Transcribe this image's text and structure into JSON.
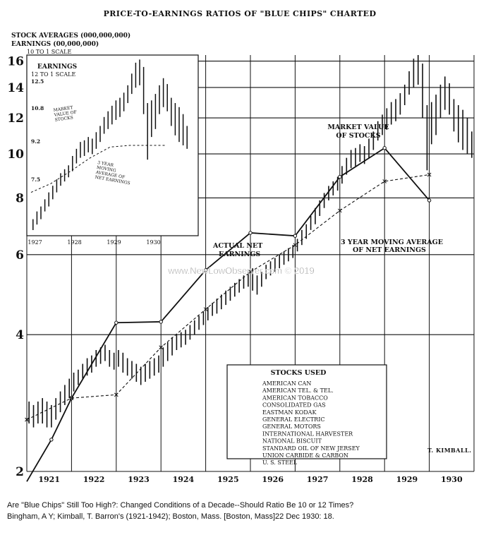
{
  "chart_data": {
    "type": "line",
    "title": "PRICE-TO-EARNINGS RATIOS OF \"BLUE CHIPS\" CHARTED",
    "ylabel_lines": [
      "STOCK AVERAGES (000,000,000)",
      "EARNINGS (00,000,000)",
      "10 TO 1 SCALE"
    ],
    "y_scale": "log",
    "y_ticks": [
      2,
      4,
      6,
      8,
      10,
      12,
      14,
      16
    ],
    "ylim": [
      2,
      16.5
    ],
    "x_tick_labels": [
      "1921",
      "1922",
      "1923",
      "1924",
      "1925",
      "1926",
      "1927",
      "1928",
      "1929",
      "1930"
    ],
    "xlim": [
      1921,
      1931
    ],
    "annotations": {
      "market_value": [
        "MARKET VALUE",
        "OF STOCKS"
      ],
      "actual_net": [
        "ACTUAL NET",
        "EARNINGS"
      ],
      "moving_avg": [
        "3 YEAR MOVING AVERAGE",
        "OF NET EARNINGS"
      ],
      "signature": "T. KIMBALL."
    },
    "series": [
      {
        "name": "MARKET VALUE OF STOCKS",
        "style": "hi-lo bars",
        "points": [
          [
            1921.0,
            2.85,
            2.55
          ],
          [
            1921.1,
            2.8,
            2.5
          ],
          [
            1921.2,
            2.85,
            2.55
          ],
          [
            1921.3,
            2.9,
            2.55
          ],
          [
            1921.4,
            2.85,
            2.5
          ],
          [
            1921.5,
            2.8,
            2.5
          ],
          [
            1921.6,
            2.9,
            2.6
          ],
          [
            1921.7,
            3.0,
            2.7
          ],
          [
            1921.8,
            3.1,
            2.8
          ],
          [
            1921.9,
            3.2,
            2.9
          ],
          [
            1922.0,
            3.3,
            3.0
          ],
          [
            1922.1,
            3.35,
            3.1
          ],
          [
            1922.2,
            3.45,
            3.2
          ],
          [
            1922.3,
            3.55,
            3.25
          ],
          [
            1922.4,
            3.6,
            3.3
          ],
          [
            1922.5,
            3.7,
            3.4
          ],
          [
            1922.6,
            3.75,
            3.45
          ],
          [
            1922.7,
            3.8,
            3.5
          ],
          [
            1922.8,
            3.7,
            3.4
          ],
          [
            1922.9,
            3.65,
            3.35
          ],
          [
            1923.0,
            3.7,
            3.4
          ],
          [
            1923.1,
            3.65,
            3.3
          ],
          [
            1923.2,
            3.55,
            3.25
          ],
          [
            1923.3,
            3.5,
            3.2
          ],
          [
            1923.4,
            3.45,
            3.15
          ],
          [
            1923.5,
            3.4,
            3.1
          ],
          [
            1923.6,
            3.45,
            3.15
          ],
          [
            1923.7,
            3.5,
            3.2
          ],
          [
            1923.8,
            3.55,
            3.25
          ],
          [
            1923.9,
            3.6,
            3.3
          ],
          [
            1924.0,
            3.75,
            3.4
          ],
          [
            1924.1,
            3.85,
            3.5
          ],
          [
            1924.2,
            3.95,
            3.6
          ],
          [
            1924.3,
            4.0,
            3.7
          ],
          [
            1924.4,
            4.05,
            3.75
          ],
          [
            1924.5,
            4.1,
            3.8
          ],
          [
            1924.6,
            4.2,
            3.9
          ],
          [
            1924.7,
            4.3,
            4.0
          ],
          [
            1924.8,
            4.4,
            4.1
          ],
          [
            1924.9,
            4.5,
            4.2
          ],
          [
            1925.0,
            4.6,
            4.3
          ],
          [
            1925.1,
            4.7,
            4.4
          ],
          [
            1925.2,
            4.8,
            4.45
          ],
          [
            1925.3,
            4.9,
            4.55
          ],
          [
            1925.4,
            5.0,
            4.65
          ],
          [
            1925.5,
            5.1,
            4.75
          ],
          [
            1925.6,
            5.2,
            4.85
          ],
          [
            1925.7,
            5.3,
            4.95
          ],
          [
            1925.8,
            5.4,
            5.05
          ],
          [
            1925.9,
            5.5,
            5.1
          ],
          [
            1926.0,
            5.6,
            5.0
          ],
          [
            1926.1,
            5.4,
            4.9
          ],
          [
            1926.2,
            5.5,
            5.1
          ],
          [
            1926.3,
            5.7,
            5.3
          ],
          [
            1926.4,
            5.8,
            5.4
          ],
          [
            1926.5,
            5.9,
            5.5
          ],
          [
            1926.6,
            6.0,
            5.6
          ],
          [
            1926.7,
            6.1,
            5.7
          ],
          [
            1926.8,
            6.2,
            5.8
          ],
          [
            1926.9,
            6.3,
            5.9
          ],
          [
            1927.0,
            6.5,
            6.1
          ],
          [
            1927.1,
            6.8,
            6.3
          ],
          [
            1927.2,
            7.0,
            6.5
          ],
          [
            1927.3,
            7.3,
            6.8
          ],
          [
            1927.4,
            7.6,
            7.0
          ],
          [
            1927.5,
            7.9,
            7.3
          ],
          [
            1927.6,
            8.2,
            7.6
          ],
          [
            1927.7,
            8.5,
            7.9
          ],
          [
            1927.8,
            8.7,
            8.1
          ],
          [
            1927.9,
            8.9,
            8.3
          ],
          [
            1928.0,
            9.4,
            8.6
          ],
          [
            1928.1,
            9.8,
            9.0
          ],
          [
            1928.2,
            10.2,
            9.3
          ],
          [
            1928.3,
            10.3,
            9.4
          ],
          [
            1928.4,
            10.5,
            9.6
          ],
          [
            1928.5,
            10.4,
            9.5
          ],
          [
            1928.6,
            10.8,
            9.8
          ],
          [
            1928.7,
            11.2,
            10.2
          ],
          [
            1928.8,
            11.8,
            10.7
          ],
          [
            1928.9,
            12.2,
            11.0
          ],
          [
            1929.0,
            12.6,
            11.3
          ],
          [
            1929.1,
            13.0,
            11.6
          ],
          [
            1929.2,
            13.2,
            11.8
          ],
          [
            1929.3,
            13.6,
            12.2
          ],
          [
            1929.4,
            14.2,
            12.8
          ],
          [
            1929.5,
            15.2,
            13.5
          ],
          [
            1929.6,
            16.2,
            14.0
          ],
          [
            1929.7,
            16.5,
            14.2
          ],
          [
            1929.8,
            15.8,
            12.0
          ],
          [
            1929.9,
            12.8,
            9.2
          ],
          [
            1930.0,
            13.0,
            10.5
          ],
          [
            1930.1,
            13.5,
            11.0
          ],
          [
            1930.2,
            14.2,
            12.0
          ],
          [
            1930.3,
            14.8,
            12.5
          ],
          [
            1930.4,
            14.3,
            12.2
          ],
          [
            1930.5,
            13.2,
            11.2
          ],
          [
            1930.6,
            12.8,
            10.6
          ],
          [
            1930.7,
            12.5,
            10.2
          ],
          [
            1930.8,
            12.0,
            10.0
          ],
          [
            1930.9,
            11.2,
            9.8
          ]
        ]
      },
      {
        "name": "ACTUAL NET EARNINGS",
        "style": "solid",
        "points": [
          [
            1921.0,
            1.9
          ],
          [
            1921.55,
            2.35
          ],
          [
            1922.0,
            2.9
          ],
          [
            1923.0,
            4.25
          ],
          [
            1924.0,
            4.27
          ],
          [
            1925.0,
            5.55
          ],
          [
            1926.0,
            6.7
          ],
          [
            1927.0,
            6.6
          ],
          [
            1928.0,
            8.9
          ],
          [
            1929.0,
            10.3
          ],
          [
            1930.0,
            7.9
          ]
        ]
      },
      {
        "name": "3 YEAR MOVING AVERAGE OF NET EARNINGS",
        "style": "dashed",
        "points": [
          [
            1921.0,
            2.6
          ],
          [
            1922.0,
            2.9
          ],
          [
            1923.0,
            2.95
          ],
          [
            1924.0,
            3.75
          ],
          [
            1925.0,
            4.55
          ],
          [
            1926.0,
            5.5
          ],
          [
            1927.0,
            6.3
          ],
          [
            1928.0,
            7.5
          ],
          [
            1929.0,
            8.7
          ],
          [
            1930.0,
            9.0
          ]
        ]
      }
    ],
    "inset": {
      "title_lines": [
        "EARNINGS",
        "12 TO 1 SCALE"
      ],
      "y_ticks": [
        7.5,
        9.2,
        10.8,
        12.5
      ],
      "x_tick_labels": [
        "1927",
        "1928",
        "1929",
        "1930"
      ],
      "annotations": {
        "market_value": [
          "MARKET",
          "VALUE OF",
          "STOCKS"
        ],
        "moving_avg": [
          "3 YEAR",
          "MOVING",
          "AVERAGE OF",
          "NET EARNINGS"
        ]
      },
      "bars": [
        [
          1927.0,
          6.5,
          6.1
        ],
        [
          1927.1,
          6.8,
          6.3
        ],
        [
          1927.2,
          7.0,
          6.5
        ],
        [
          1927.3,
          7.3,
          6.8
        ],
        [
          1927.4,
          7.6,
          7.0
        ],
        [
          1927.5,
          7.9,
          7.3
        ],
        [
          1927.6,
          8.2,
          7.6
        ],
        [
          1927.7,
          8.5,
          7.9
        ],
        [
          1927.8,
          8.7,
          8.1
        ],
        [
          1927.9,
          8.9,
          8.3
        ],
        [
          1928.0,
          9.4,
          8.6
        ],
        [
          1928.1,
          9.8,
          9.0
        ],
        [
          1928.2,
          10.2,
          9.3
        ],
        [
          1928.3,
          10.3,
          9.4
        ],
        [
          1928.4,
          10.5,
          9.6
        ],
        [
          1928.5,
          10.4,
          9.5
        ],
        [
          1928.6,
          10.8,
          9.8
        ],
        [
          1928.7,
          11.2,
          10.2
        ],
        [
          1928.8,
          11.8,
          10.7
        ],
        [
          1928.9,
          12.2,
          11.0
        ],
        [
          1929.0,
          12.6,
          11.3
        ],
        [
          1929.1,
          13.0,
          11.6
        ],
        [
          1929.2,
          13.2,
          11.8
        ],
        [
          1929.3,
          13.6,
          12.2
        ],
        [
          1929.4,
          14.2,
          12.8
        ],
        [
          1929.5,
          15.2,
          13.5
        ],
        [
          1929.6,
          16.2,
          14.0
        ],
        [
          1929.7,
          16.5,
          14.2
        ],
        [
          1929.8,
          15.8,
          12.0
        ],
        [
          1929.9,
          12.8,
          9.2
        ],
        [
          1930.0,
          13.0,
          10.5
        ],
        [
          1930.1,
          13.5,
          11.0
        ],
        [
          1930.2,
          14.2,
          12.0
        ],
        [
          1930.3,
          14.8,
          12.5
        ],
        [
          1930.4,
          14.3,
          12.2
        ],
        [
          1930.5,
          13.2,
          11.2
        ],
        [
          1930.6,
          12.8,
          10.6
        ],
        [
          1930.7,
          12.5,
          10.2
        ],
        [
          1930.8,
          12.0,
          10.0
        ],
        [
          1930.9,
          11.2,
          9.8
        ]
      ],
      "moving_avg": [
        [
          1927.0,
          7.6
        ],
        [
          1927.5,
          8.0
        ],
        [
          1928.0,
          8.6
        ],
        [
          1928.5,
          9.3
        ],
        [
          1929.0,
          9.9
        ],
        [
          1929.5,
          10.0
        ],
        [
          1930.0,
          10.0
        ],
        [
          1930.4,
          10.0
        ]
      ]
    }
  },
  "stocks_used": {
    "title": "STOCKS USED",
    "items": [
      "AMERICAN CAN",
      "AMERICAN TEL. & TEL.",
      "AMERICAN TOBACCO",
      "CONSOLIDATED GAS",
      "EASTMAN KODAK",
      "GENERAL ELECTRIC",
      "GENERAL MOTORS",
      "INTERNATIONAL HARVESTER",
      "NATIONAL BISCUIT",
      "STANDARD OIL OF NEW JERSEY",
      "UNION CARBIDE & CARBON",
      "U. S. STEEL"
    ]
  },
  "watermark": "www.NewLowObserver.com © 2019",
  "caption": {
    "line1": "Are \"Blue Chips\" Still Too High?: Changed Conditions of a Decade--Should Ratio Be 10 or 12 Times?",
    "line2": "Bingham, A Y; Kimball, T. Barron's (1921-1942); Boston, Mass. [Boston, Mass]22 Dec 1930: 18."
  }
}
